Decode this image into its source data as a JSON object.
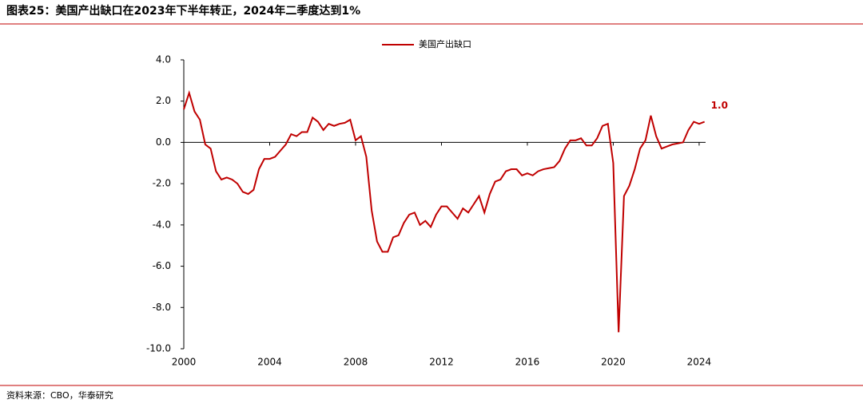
{
  "chart_data": {
    "type": "line",
    "title": "图表25：美国产出缺口在2023年下半年转正，2024年二季度达到1%",
    "source": "资料来源：CBO，华泰研究",
    "x": [
      2000,
      2000.25,
      2000.5,
      2000.75,
      2001,
      2001.25,
      2001.5,
      2001.75,
      2002,
      2002.25,
      2002.5,
      2002.75,
      2003,
      2003.25,
      2003.5,
      2003.75,
      2004,
      2004.25,
      2004.5,
      2004.75,
      2005,
      2005.25,
      2005.5,
      2005.75,
      2006,
      2006.25,
      2006.5,
      2006.75,
      2007,
      2007.25,
      2007.5,
      2007.75,
      2008,
      2008.25,
      2008.5,
      2008.75,
      2009,
      2009.25,
      2009.5,
      2009.75,
      2010,
      2010.25,
      2010.5,
      2010.75,
      2011,
      2011.25,
      2011.5,
      2011.75,
      2012,
      2012.25,
      2012.5,
      2012.75,
      2013,
      2013.25,
      2013.5,
      2013.75,
      2014,
      2014.25,
      2014.5,
      2014.75,
      2015,
      2015.25,
      2015.5,
      2015.75,
      2016,
      2016.25,
      2016.5,
      2016.75,
      2017,
      2017.25,
      2017.5,
      2017.75,
      2018,
      2018.25,
      2018.5,
      2018.75,
      2019,
      2019.25,
      2019.5,
      2019.75,
      2020,
      2020.25,
      2020.5,
      2020.75,
      2021,
      2021.25,
      2021.5,
      2021.75,
      2022,
      2022.25,
      2022.5,
      2022.75,
      2023,
      2023.25,
      2023.5,
      2023.75,
      2024,
      2024.25
    ],
    "series": [
      {
        "name": "美国产出缺口",
        "color": "#c00000",
        "values": [
          1.6,
          2.4,
          1.5,
          1.1,
          -0.1,
          -0.3,
          -1.4,
          -1.8,
          -1.7,
          -1.8,
          -2.0,
          -2.4,
          -2.5,
          -2.3,
          -1.3,
          -0.8,
          -0.8,
          -0.7,
          -0.4,
          -0.1,
          0.4,
          0.3,
          0.5,
          0.5,
          1.2,
          1.0,
          0.6,
          0.9,
          0.8,
          0.9,
          0.95,
          1.1,
          0.1,
          0.3,
          -0.7,
          -3.3,
          -4.8,
          -5.3,
          -5.3,
          -4.6,
          -4.5,
          -3.9,
          -3.5,
          -3.4,
          -4.0,
          -3.8,
          -4.1,
          -3.5,
          -3.1,
          -3.1,
          -3.4,
          -3.7,
          -3.2,
          -3.4,
          -3.0,
          -2.6,
          -3.4,
          -2.5,
          -1.9,
          -1.8,
          -1.4,
          -1.3,
          -1.3,
          -1.6,
          -1.5,
          -1.6,
          -1.4,
          -1.3,
          -1.25,
          -1.2,
          -0.9,
          -0.3,
          0.1,
          0.1,
          0.2,
          -0.15,
          -0.15,
          0.2,
          0.8,
          0.9,
          -1.0,
          -9.2,
          -2.6,
          -2.1,
          -1.3,
          -0.3,
          0.1,
          1.3,
          0.3,
          -0.3,
          -0.2,
          -0.1,
          -0.05,
          0.0,
          0.6,
          1.0,
          0.9,
          1.0
        ]
      }
    ],
    "annotations": [
      {
        "label": "1.0",
        "x": 2024.25,
        "y": 1.0
      }
    ],
    "xlim": [
      2000,
      2024.3
    ],
    "xticks": [
      2000,
      2004,
      2008,
      2012,
      2016,
      2020,
      2024
    ],
    "ylim": [
      -10,
      4
    ],
    "yticks": [
      {
        "value": -10,
        "label": "-10.0"
      },
      {
        "value": -8,
        "label": "-8.0"
      },
      {
        "value": -6,
        "label": "-6.0"
      },
      {
        "value": -4,
        "label": "-4.0"
      },
      {
        "value": -2,
        "label": "-2.0"
      },
      {
        "value": 0,
        "label": "0.0"
      },
      {
        "value": 2,
        "label": "2.0"
      },
      {
        "value": 4,
        "label": "4.0"
      }
    ],
    "legend": "top"
  }
}
